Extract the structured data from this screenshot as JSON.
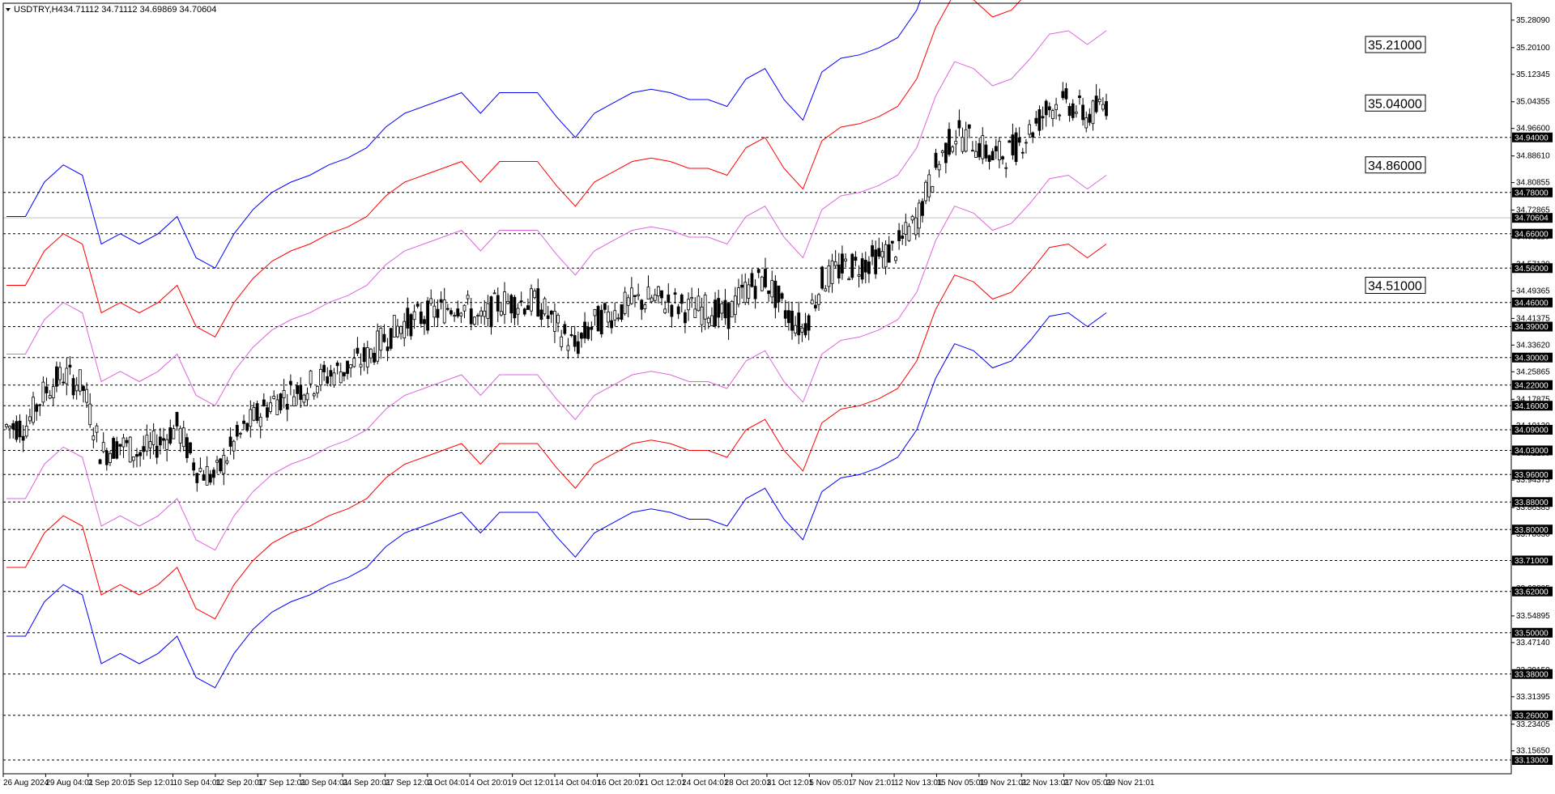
{
  "header": {
    "symbol": "USDTRY,H4",
    "prices": "34.71112 34.71112 34.69869 34.70604"
  },
  "colors": {
    "band_outer": "#0000ff",
    "band_middle": "#ff0000",
    "band_inner": "#dd66dd",
    "candles": "#000000",
    "level_lines": "#000000",
    "background": "#ffffff"
  },
  "chart_data": {
    "type": "candlestick",
    "ylim": [
      33.09,
      35.33
    ],
    "yticks": [
      "35.28090",
      "35.20100",
      "35.12345",
      "35.04355",
      "34.96600",
      "34.88610",
      "34.80855",
      "34.72865",
      "34.65110",
      "34.57120",
      "34.49365",
      "34.41375",
      "34.33620",
      "34.25865",
      "34.17875",
      "34.10120",
      "34.02130",
      "33.94375",
      "33.86385",
      "33.78630",
      "33.70640",
      "33.62885",
      "33.54895",
      "33.47140",
      "33.39150",
      "33.31395",
      "33.23405",
      "33.15650"
    ],
    "xticks": [
      "26 Aug 2024",
      "29 Aug 04:01",
      "2 Sep 20:01",
      "5 Sep 12:01",
      "10 Sep 04:01",
      "12 Sep 20:01",
      "17 Sep 12:01",
      "20 Sep 04:01",
      "24 Sep 20:01",
      "27 Sep 12:01",
      "2 Oct 04:01",
      "4 Oct 20:01",
      "9 Oct 12:01",
      "14 Oct 04:01",
      "16 Oct 20:01",
      "21 Oct 12:01",
      "24 Oct 04:01",
      "28 Oct 20:01",
      "31 Oct 12:01",
      "5 Nov 05:01",
      "7 Nov 21:01",
      "12 Nov 13:01",
      "15 Nov 05:01",
      "19 Nov 21:01",
      "22 Nov 13:01",
      "27 Nov 05:01",
      "29 Nov 21:01"
    ],
    "levels": [
      {
        "value": 34.94,
        "label": "34.94000"
      },
      {
        "value": 34.78,
        "label": "34.78000"
      },
      {
        "value": 34.66,
        "label": "34.66000"
      },
      {
        "value": 34.56,
        "label": "34.56000"
      },
      {
        "value": 34.46,
        "label": "34.46000"
      },
      {
        "value": 34.39,
        "label": "34.39000"
      },
      {
        "value": 34.3,
        "label": "34.30000"
      },
      {
        "value": 34.22,
        "label": "34.22000"
      },
      {
        "value": 34.16,
        "label": "34.16000"
      },
      {
        "value": 34.09,
        "label": "34.09000"
      },
      {
        "value": 34.03,
        "label": "34.03000"
      },
      {
        "value": 33.96,
        "label": "33.96000"
      },
      {
        "value": 33.88,
        "label": "33.88000"
      },
      {
        "value": 33.8,
        "label": "33.80000"
      },
      {
        "value": 33.71,
        "label": "33.71000"
      },
      {
        "value": 33.62,
        "label": "33.62000"
      },
      {
        "value": 33.5,
        "label": "33.50000"
      },
      {
        "value": 33.38,
        "label": "33.38000"
      },
      {
        "value": 33.26,
        "label": "33.26000"
      },
      {
        "value": 33.13,
        "label": "33.13000"
      }
    ],
    "current_price": {
      "value": 34.70604,
      "label": "34.70604"
    },
    "annotations": [
      {
        "value": 35.21,
        "label": "35.21000"
      },
      {
        "value": 35.04,
        "label": "35.04000"
      },
      {
        "value": 34.86,
        "label": "34.86000"
      },
      {
        "value": 34.51,
        "label": "34.51000"
      }
    ],
    "bands": {
      "center": [
        [
          0,
          34.1
        ],
        [
          3,
          34.1
        ],
        [
          6,
          34.2
        ],
        [
          9,
          34.25
        ],
        [
          12,
          34.22
        ],
        [
          15,
          34.02
        ],
        [
          18,
          34.05
        ],
        [
          21,
          34.02
        ],
        [
          24,
          34.05
        ],
        [
          27,
          34.1
        ],
        [
          30,
          33.98
        ],
        [
          33,
          33.95
        ],
        [
          36,
          34.05
        ],
        [
          39,
          34.12
        ],
        [
          42,
          34.17
        ],
        [
          45,
          34.2
        ],
        [
          48,
          34.22
        ],
        [
          51,
          34.25
        ],
        [
          54,
          34.27
        ],
        [
          57,
          34.3
        ],
        [
          60,
          34.36
        ],
        [
          63,
          34.4
        ],
        [
          66,
          34.42
        ],
        [
          69,
          34.44
        ],
        [
          72,
          34.46
        ],
        [
          75,
          34.4
        ],
        [
          78,
          34.46
        ],
        [
          81,
          34.46
        ],
        [
          84,
          34.46
        ],
        [
          87,
          34.39
        ],
        [
          90,
          34.33
        ],
        [
          93,
          34.4
        ],
        [
          96,
          34.43
        ],
        [
          99,
          34.46
        ],
        [
          102,
          34.47
        ],
        [
          105,
          34.46
        ],
        [
          108,
          34.44
        ],
        [
          111,
          34.44
        ],
        [
          114,
          34.42
        ],
        [
          117,
          34.5
        ],
        [
          120,
          34.53
        ],
        [
          123,
          34.44
        ],
        [
          126,
          34.38
        ],
        [
          129,
          34.52
        ],
        [
          132,
          34.56
        ],
        [
          135,
          34.57
        ],
        [
          138,
          34.59
        ],
        [
          141,
          34.62
        ],
        [
          144,
          34.7
        ],
        [
          147,
          34.85
        ],
        [
          150,
          34.95
        ],
        [
          153,
          34.93
        ],
        [
          156,
          34.88
        ],
        [
          159,
          34.9
        ],
        [
          162,
          34.96
        ],
        [
          165,
          35.03
        ],
        [
          168,
          35.04
        ],
        [
          171,
          35.0
        ],
        [
          174,
          35.04
        ]
      ],
      "offsets": [
        0.21,
        0.41,
        0.61
      ]
    }
  }
}
